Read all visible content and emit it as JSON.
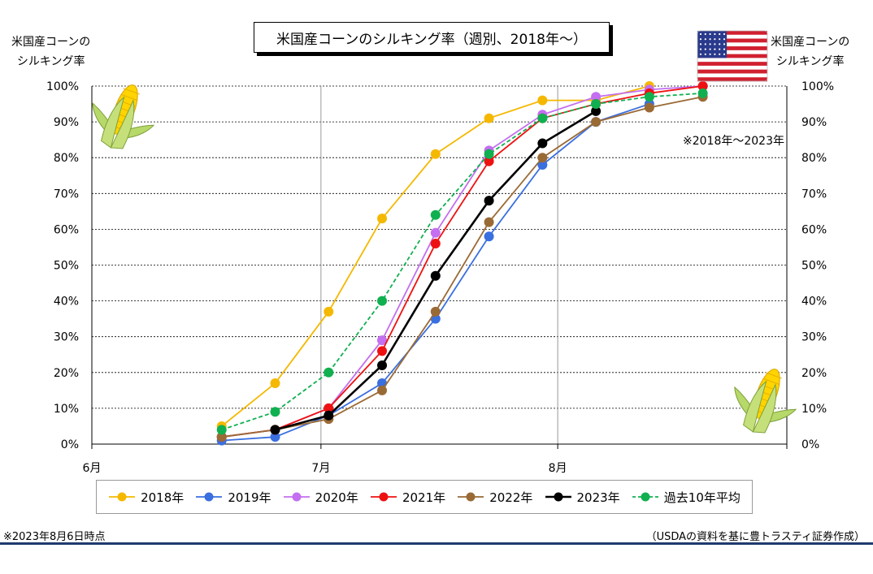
{
  "page": {
    "title": "米国産コーンのシルキング率（週別、2018年〜）",
    "left_axis_title": [
      "米国産コーンの",
      "シルキング率"
    ],
    "right_axis_title": [
      "米国産コーンの",
      "シルキング率"
    ],
    "note_range": "※2018年〜2023年",
    "footnote_left": "※2023年8月6日時点",
    "footnote_right": "（USDAの資料を基に豊トラスティ証券作成）",
    "icons": [
      "corn-icon",
      "us-flag-icon"
    ]
  },
  "chart_data": {
    "type": "line",
    "x_tick_labels": [
      "6月",
      "7月",
      "8月"
    ],
    "y_tick_labels": [
      "0%",
      "10%",
      "20%",
      "30%",
      "40%",
      "50%",
      "60%",
      "70%",
      "80%",
      "90%",
      "100%"
    ],
    "ylim": [
      0,
      100
    ],
    "y_unit": "%",
    "grid": true,
    "legend_position": "bottom",
    "x_range_days": [
      0,
      91
    ],
    "series": [
      {
        "name": "2018年",
        "color": "#f5b800",
        "dashed": false,
        "x": [
          17,
          24,
          31,
          38,
          45,
          52,
          59,
          66,
          73
        ],
        "values": [
          5,
          17,
          37,
          63,
          81,
          91,
          96,
          96,
          100
        ]
      },
      {
        "name": "2019年",
        "color": "#3a6fe0",
        "dashed": false,
        "x": [
          17,
          24,
          31,
          38,
          45,
          52,
          59,
          66,
          73
        ],
        "values": [
          1,
          2,
          8,
          17,
          35,
          58,
          78,
          90,
          95
        ]
      },
      {
        "name": "2020年",
        "color": "#c46ef0",
        "dashed": false,
        "x": [
          17,
          24,
          31,
          38,
          45,
          52,
          59,
          66,
          73,
          80
        ],
        "values": [
          2,
          4,
          10,
          29,
          59,
          82,
          92,
          97,
          99,
          100
        ]
      },
      {
        "name": "2021年",
        "color": "#ee1111",
        "dashed": false,
        "x": [
          17,
          24,
          31,
          38,
          45,
          52,
          59,
          66,
          73,
          80
        ],
        "values": [
          2,
          4,
          10,
          26,
          56,
          79,
          91,
          95,
          98,
          100
        ]
      },
      {
        "name": "2022年",
        "color": "#9a6a35",
        "dashed": false,
        "x": [
          17,
          24,
          31,
          38,
          45,
          52,
          59,
          66,
          73,
          80
        ],
        "values": [
          2,
          4,
          7,
          15,
          37,
          62,
          80,
          90,
          94,
          97
        ]
      },
      {
        "name": "2023年",
        "color": "#000000",
        "dashed": false,
        "x": [
          24,
          31,
          38,
          45,
          52,
          59,
          66
        ],
        "values": [
          4,
          8,
          22,
          47,
          68,
          84,
          93
        ]
      },
      {
        "name": "過去10年平均",
        "color": "#10b050",
        "dashed": true,
        "x": [
          17,
          24,
          31,
          38,
          45,
          52,
          59,
          66,
          73,
          80
        ],
        "values": [
          4,
          9,
          20,
          40,
          64,
          81,
          91,
          95,
          97,
          98
        ]
      }
    ]
  }
}
